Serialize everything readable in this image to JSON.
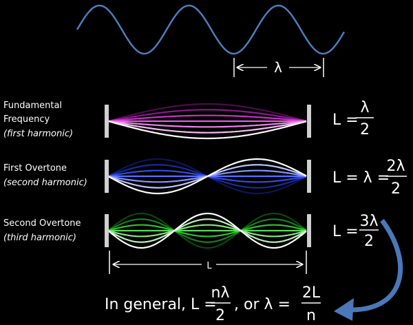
{
  "wavelength_label": "λ",
  "length_label": "L",
  "modes": [
    {
      "n": 1,
      "title": "Fundamental",
      "title2": "Frequency",
      "subtitle": "(first harmonic)",
      "color": "#e020e0",
      "equation": {
        "lhs": "L =",
        "num": "λ",
        "den": "2"
      }
    },
    {
      "n": 2,
      "title": "First Overtone",
      "subtitle": "(second harmonic)",
      "color": "#2040ff",
      "equation": {
        "lhs": "L = λ  =",
        "num": "2λ",
        "den": "2"
      }
    },
    {
      "n": 3,
      "title": "Second Overtone",
      "subtitle": "(third harmonic)",
      "color": "#20d020",
      "equation": {
        "lhs": "L =",
        "num": "3λ",
        "den": "2"
      }
    }
  ],
  "general": {
    "prefix": "In general, L =",
    "num1": "nλ",
    "den1": "2",
    "mid": ", or   λ =",
    "num2": "2L",
    "den2": "n"
  },
  "colors": {
    "background": "#000000",
    "top_wave": "#4a7fc0",
    "curved_arrow": "#4a78b8",
    "bars": "#d0d0d0"
  }
}
